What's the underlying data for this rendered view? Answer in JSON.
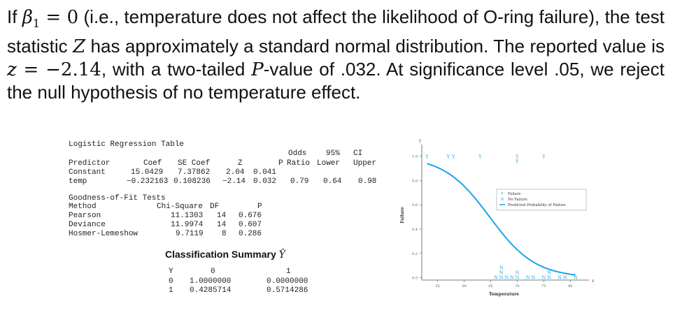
{
  "paragraph": {
    "p1": "If ",
    "beta": "β",
    "beta_sub": "1",
    "eq0": " = 0",
    "p2": " (i.e., temperature does not affect the likelihood of O-ring failure), the test statistic ",
    "Z": "Z",
    "p3": " has approximately a standard normal distribution. The reported value is ",
    "z": "z",
    "zval": " = −2.14",
    "p4": ", with a two-tailed ",
    "P": "P",
    "p5": "-value of .032. At significance level .05, we reject the null hypothesis of no temperature effect."
  },
  "logistic_table": {
    "title": "Logistic Regression Table",
    "odds_header": "Odds",
    "ci_header": "95%",
    "ci_label": "CI",
    "headers": [
      "Predictor",
      "Coef",
      "SE Coef",
      "Z",
      "P",
      "Ratio",
      "Lower",
      "Upper"
    ],
    "rows": [
      [
        "Constant",
        "15.0429",
        "7.37862",
        "2.04",
        "0.041",
        "",
        "",
        ""
      ],
      [
        "temp",
        "−0.232163",
        "0.108236",
        "−2.14",
        "0.032",
        "0.79",
        "0.64",
        "0.98"
      ]
    ]
  },
  "gof": {
    "title": "Goodness-of-Fit Tests",
    "headers": [
      "Method",
      "Chi-Square",
      "DF",
      "P"
    ],
    "rows": [
      [
        "Pearson",
        "11.1303",
        "14",
        "0.676"
      ],
      [
        "Deviance",
        "11.9974",
        "14",
        "0.607"
      ],
      [
        "Hosmer-Lemeshow",
        "9.7119",
        "8",
        "0.286"
      ]
    ]
  },
  "classification": {
    "title": "Classification Summary",
    "yhat": "Ŷ",
    "y_label": "Y",
    "col_headers": [
      "0",
      "1"
    ],
    "rows": [
      [
        "0",
        "1.0000000",
        "0.0000000"
      ],
      [
        "1",
        "0.4285714",
        "0.5714286"
      ]
    ]
  },
  "chart_data": {
    "type": "scatter",
    "xlabel": "Temperature",
    "ylabel": "Failure",
    "top_axis_label": "y",
    "x_corner_label": "x",
    "xlim": [
      52,
      83
    ],
    "ylim": [
      -0.02,
      1.05
    ],
    "xticks": [
      55,
      60,
      65,
      70,
      75,
      80
    ],
    "yticks": [
      0.0,
      0.2,
      0.4,
      0.6,
      0.8,
      1.0
    ],
    "legend_position": "right-middle",
    "legend": [
      {
        "marker": "Y",
        "label": "Failure"
      },
      {
        "marker": "N",
        "label": "No Failure"
      },
      {
        "marker": "line",
        "label": "Predicted Probability of Failure"
      }
    ],
    "failure_points": [
      [
        53,
        1
      ],
      [
        57,
        1
      ],
      [
        58,
        1
      ],
      [
        63,
        1
      ],
      [
        70,
        1
      ],
      [
        70,
        1
      ],
      [
        75,
        1
      ]
    ],
    "no_failure_points": [
      [
        66,
        0
      ],
      [
        67,
        0
      ],
      [
        67,
        0
      ],
      [
        67,
        0
      ],
      [
        68,
        0
      ],
      [
        69,
        0
      ],
      [
        70,
        0
      ],
      [
        70,
        0
      ],
      [
        72,
        0
      ],
      [
        73,
        0
      ],
      [
        75,
        0
      ],
      [
        76,
        0
      ],
      [
        76,
        0
      ],
      [
        78,
        0
      ],
      [
        79,
        0
      ],
      [
        81,
        0
      ]
    ],
    "curve": {
      "intercept": 15.0429,
      "slope": -0.232163,
      "x_range": [
        53,
        81
      ]
    },
    "colors": {
      "curve": "#1aa3e8",
      "failure": "#1aa3e8",
      "no_failure": "#1aa3e8",
      "axis": "#555555"
    }
  }
}
